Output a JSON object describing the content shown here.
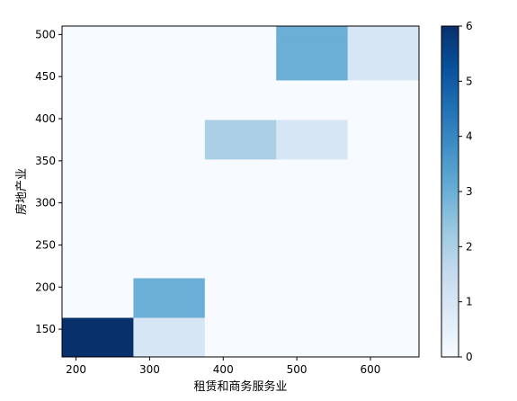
{
  "chart_data": {
    "type": "heatmap",
    "title": "",
    "xlabel": "租赁和商务服务业",
    "ylabel": "房地产业",
    "x_edges": [
      181,
      278,
      375,
      472,
      569,
      666
    ],
    "y_edges": [
      117,
      164,
      211,
      258,
      305,
      352,
      399,
      446,
      493,
      540
    ],
    "counts": [
      [
        6,
        0,
        0,
        0,
        0,
        0,
        0,
        0,
        0
      ],
      [
        1,
        3,
        0,
        0,
        0,
        0,
        0,
        0,
        0
      ],
      [
        0,
        0,
        0,
        0,
        0,
        2,
        0,
        0,
        0
      ],
      [
        0,
        0,
        0,
        0,
        0,
        1,
        0,
        3,
        3
      ],
      [
        0,
        0,
        0,
        0,
        0,
        0,
        0,
        1,
        1
      ]
    ],
    "xlim": [
      181,
      666
    ],
    "ylim": [
      117,
      510
    ],
    "x_ticks": [
      200,
      300,
      400,
      500,
      600
    ],
    "y_ticks": [
      150,
      200,
      250,
      300,
      350,
      400,
      450,
      500
    ],
    "colorbar": {
      "min": 0,
      "max": 6,
      "ticks": [
        0,
        1,
        2,
        3,
        4,
        5,
        6
      ]
    },
    "colormap": "Blues",
    "colormap_stops": [
      "#f7fbff",
      "#deebf7",
      "#c6dbef",
      "#9ecae1",
      "#6baed6",
      "#4292c6",
      "#2171b5",
      "#08519c",
      "#08306b"
    ]
  }
}
